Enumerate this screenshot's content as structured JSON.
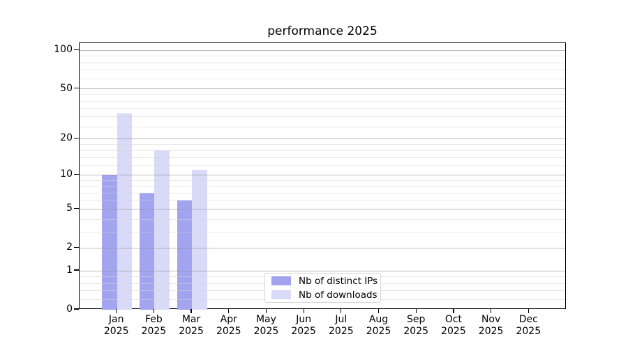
{
  "chart_data": {
    "type": "bar",
    "title": "performance 2025",
    "categories": [
      "Jan",
      "Feb",
      "Mar",
      "Apr",
      "May",
      "Jun",
      "Jul",
      "Aug",
      "Sep",
      "Oct",
      "Nov",
      "Dec"
    ],
    "category_year": "2025",
    "series": [
      {
        "name": "Nb of distinct IPs",
        "color": "#a2a4f0",
        "values": [
          10,
          7,
          6,
          0,
          0,
          0,
          0,
          0,
          0,
          0,
          0,
          0
        ]
      },
      {
        "name": "Nb of downloads",
        "color": "#d8daf8",
        "values": [
          32,
          16,
          11,
          0,
          0,
          0,
          0,
          0,
          0,
          0,
          0,
          0
        ]
      }
    ],
    "yscale": "log1p",
    "ylim": [
      0,
      114
    ],
    "yticks": [
      0,
      1,
      2,
      5,
      10,
      20,
      50,
      100
    ],
    "yticks_minor": [
      0.2,
      0.4,
      0.6,
      0.8,
      3,
      4,
      6,
      7,
      8,
      9,
      12,
      14,
      16,
      18,
      25,
      30,
      35,
      40,
      45,
      60,
      70,
      80,
      90
    ],
    "grid": "horizontal",
    "legend_position": "lower-center"
  },
  "style": {
    "grid_major_color": "rgba(150,150,150,0.65)",
    "grid_minor_color": "rgba(213,213,213,0.55)",
    "spine_color": "#000000",
    "text_color": "#000000",
    "legend_border_color": "#d5d5d5",
    "background": "#ffffff"
  }
}
